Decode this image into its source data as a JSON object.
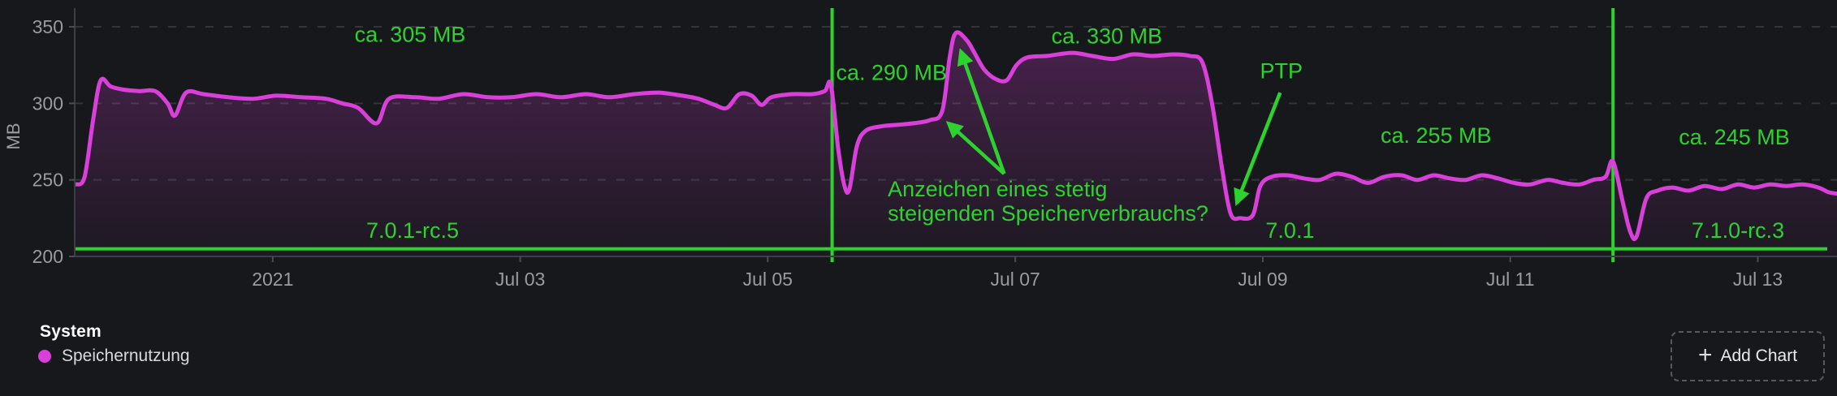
{
  "colors": {
    "background": "#17181c",
    "accent_green": "#2ed22e",
    "series_magenta": "#d93fd9",
    "tick_text": "#989ba0",
    "axis_line": "#3b3e44",
    "grid_line": "rgba(255,255,255,0.13)"
  },
  "chart_data": {
    "type": "area",
    "title": "",
    "unit": "MB",
    "ylabel": "MB",
    "legend_position": "bottom-left",
    "grid": "dashed-horizontal",
    "x_axis": {
      "min": -0.6,
      "max": 13.64,
      "unit": "july-day-2021",
      "ticks": [
        {
          "t": 1,
          "label": "2021"
        },
        {
          "t": 3,
          "label": "Jul 03"
        },
        {
          "t": 5,
          "label": "Jul 05"
        },
        {
          "t": 7,
          "label": "Jul 07"
        },
        {
          "t": 9,
          "label": "Jul 09"
        },
        {
          "t": 11,
          "label": "Jul 11"
        },
        {
          "t": 13,
          "label": "Jul 13"
        }
      ]
    },
    "y_axis": {
      "min": 200,
      "max": 350,
      "render_min": 200,
      "render_max": 362.2,
      "ticks": [
        {
          "v": 350,
          "label": "350"
        },
        {
          "v": 300,
          "label": "300"
        },
        {
          "v": 250,
          "label": "250"
        },
        {
          "v": 200,
          "label": "200"
        }
      ]
    },
    "series": [
      {
        "name": "Speichernutzung",
        "color": "#d93fd9",
        "points": [
          [
            -0.59,
            247
          ],
          [
            -0.52,
            252
          ],
          [
            -0.45,
            290
          ],
          [
            -0.39,
            315
          ],
          [
            -0.31,
            311
          ],
          [
            -0.21,
            309
          ],
          [
            -0.08,
            308
          ],
          [
            0.05,
            308
          ],
          [
            0.15,
            300
          ],
          [
            0.21,
            292
          ],
          [
            0.3,
            307
          ],
          [
            0.44,
            306
          ],
          [
            0.64,
            304
          ],
          [
            0.84,
            303
          ],
          [
            1.03,
            305
          ],
          [
            1.23,
            304
          ],
          [
            1.43,
            303
          ],
          [
            1.56,
            300
          ],
          [
            1.69,
            297
          ],
          [
            1.84,
            287
          ],
          [
            1.94,
            303
          ],
          [
            2.15,
            304
          ],
          [
            2.34,
            303
          ],
          [
            2.54,
            306
          ],
          [
            2.74,
            304
          ],
          [
            2.93,
            304
          ],
          [
            3.13,
            306
          ],
          [
            3.33,
            304
          ],
          [
            3.53,
            306
          ],
          [
            3.72,
            304
          ],
          [
            3.92,
            306
          ],
          [
            4.12,
            307
          ],
          [
            4.31,
            305
          ],
          [
            4.44,
            303
          ],
          [
            4.57,
            299
          ],
          [
            4.67,
            297
          ],
          [
            4.77,
            306
          ],
          [
            4.87,
            305
          ],
          [
            4.95,
            299
          ],
          [
            5.03,
            304
          ],
          [
            5.2,
            306
          ],
          [
            5.36,
            306
          ],
          [
            5.46,
            308
          ],
          [
            5.51,
            312
          ],
          [
            5.57,
            270
          ],
          [
            5.62,
            246
          ],
          [
            5.66,
            244
          ],
          [
            5.72,
            272
          ],
          [
            5.79,
            282
          ],
          [
            5.92,
            285
          ],
          [
            6.05,
            286
          ],
          [
            6.18,
            287
          ],
          [
            6.31,
            289
          ],
          [
            6.41,
            295
          ],
          [
            6.47,
            330
          ],
          [
            6.52,
            346
          ],
          [
            6.61,
            341
          ],
          [
            6.67,
            333
          ],
          [
            6.75,
            322
          ],
          [
            6.84,
            316
          ],
          [
            6.93,
            315
          ],
          [
            7.01,
            325
          ],
          [
            7.1,
            330
          ],
          [
            7.26,
            331
          ],
          [
            7.46,
            333
          ],
          [
            7.62,
            331
          ],
          [
            7.79,
            329
          ],
          [
            7.95,
            332
          ],
          [
            8.11,
            331
          ],
          [
            8.28,
            332
          ],
          [
            8.41,
            331
          ],
          [
            8.51,
            327
          ],
          [
            8.59,
            300
          ],
          [
            8.67,
            258
          ],
          [
            8.74,
            228
          ],
          [
            8.82,
            225
          ],
          [
            8.92,
            227
          ],
          [
            8.98,
            246
          ],
          [
            9.07,
            252
          ],
          [
            9.2,
            253
          ],
          [
            9.33,
            251
          ],
          [
            9.46,
            250
          ],
          [
            9.59,
            254
          ],
          [
            9.72,
            252
          ],
          [
            9.85,
            248
          ],
          [
            9.98,
            252
          ],
          [
            10.12,
            253
          ],
          [
            10.25,
            250
          ],
          [
            10.38,
            253
          ],
          [
            10.51,
            251
          ],
          [
            10.64,
            250
          ],
          [
            10.77,
            253
          ],
          [
            10.9,
            251
          ],
          [
            11.03,
            248
          ],
          [
            11.16,
            247
          ],
          [
            11.3,
            250
          ],
          [
            11.43,
            248
          ],
          [
            11.56,
            247
          ],
          [
            11.67,
            250
          ],
          [
            11.77,
            252
          ],
          [
            11.83,
            262
          ],
          [
            11.91,
            235
          ],
          [
            11.97,
            216
          ],
          [
            12.02,
            213
          ],
          [
            12.1,
            238
          ],
          [
            12.19,
            243
          ],
          [
            12.31,
            245
          ],
          [
            12.44,
            243
          ],
          [
            12.57,
            246
          ],
          [
            12.71,
            244
          ],
          [
            12.84,
            247
          ],
          [
            12.97,
            245
          ],
          [
            13.1,
            247
          ],
          [
            13.23,
            246
          ],
          [
            13.36,
            247
          ],
          [
            13.49,
            245
          ],
          [
            13.57,
            242
          ],
          [
            13.64,
            241
          ]
        ]
      }
    ],
    "threshold_line": {
      "value": 205,
      "color": "#2ed22e"
    },
    "event_lines": [
      {
        "t": 5.52,
        "color": "#2ed22e"
      },
      {
        "t": 11.83,
        "color": "#2ed22e"
      }
    ],
    "annotations": [
      {
        "text": "ca. 305 MB",
        "t": 2.11,
        "v": 345,
        "anchor": "middle"
      },
      {
        "text": "ca. 290 MB",
        "t": 6.0,
        "v": 320,
        "anchor": "middle"
      },
      {
        "text": "ca. 330 MB",
        "t": 7.74,
        "v": 344,
        "anchor": "middle"
      },
      {
        "text": "PTP",
        "t": 9.15,
        "v": 321,
        "anchor": "middle"
      },
      {
        "text": "ca. 255 MB",
        "t": 10.4,
        "v": 279,
        "anchor": "middle"
      },
      {
        "text": "ca. 245 MB",
        "t": 12.81,
        "v": 278,
        "anchor": "middle"
      },
      {
        "text": "7.0.1-rc.5",
        "t": 2.13,
        "v": 217,
        "anchor": "middle"
      },
      {
        "text": "7.0.1",
        "t": 9.22,
        "v": 217,
        "anchor": "middle"
      },
      {
        "text": "7.1.0-rc.3",
        "t": 12.84,
        "v": 217,
        "anchor": "middle"
      },
      {
        "lines": [
          "Anzeichen eines stetig",
          "steigenden Speicherverbrauchs?"
        ],
        "t": 5.97,
        "v": 244,
        "anchor": "start"
      }
    ],
    "arrows": [
      {
        "from": [
          6.91,
          254
        ],
        "to": [
          6.56,
          334
        ]
      },
      {
        "from": [
          6.91,
          254
        ],
        "to": [
          6.46,
          287
        ]
      },
      {
        "from": [
          9.14,
          307
        ],
        "to": [
          8.79,
          235
        ]
      }
    ]
  },
  "legend": {
    "group_label": "System",
    "series": [
      {
        "label": "Speichernutzung",
        "color": "#d93fd9"
      }
    ]
  },
  "footer": {
    "plus_icon": "+",
    "add_chart_label": "Add Chart"
  }
}
